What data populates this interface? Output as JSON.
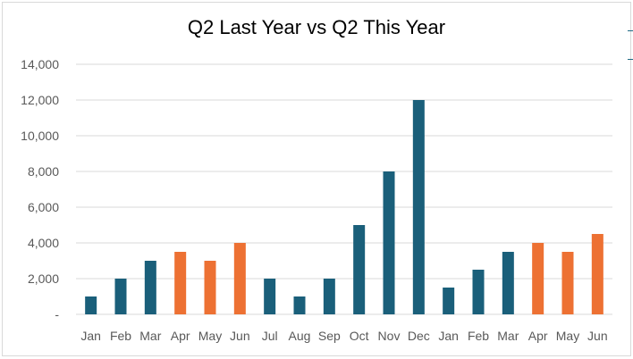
{
  "chart_data": {
    "type": "bar",
    "title": "Q2 Last Year vs Q2 This Year",
    "categories": [
      "Jan",
      "Feb",
      "Mar",
      "Apr",
      "May",
      "Jun",
      "Jul",
      "Aug",
      "Sep",
      "Oct",
      "Nov",
      "Dec",
      "Jan",
      "Feb",
      "Mar",
      "Apr",
      "May",
      "Jun"
    ],
    "values": [
      1000,
      2000,
      3000,
      3500,
      3000,
      4000,
      2000,
      1000,
      2000,
      5000,
      8000,
      12000,
      1500,
      2500,
      3500,
      4000,
      3500,
      4500
    ],
    "highlight": [
      false,
      false,
      false,
      true,
      true,
      true,
      false,
      false,
      false,
      false,
      false,
      false,
      false,
      false,
      false,
      true,
      true,
      true
    ],
    "colors": {
      "base": "#1a5f7a",
      "highlight": "#ed7133",
      "grid": "#d9d9d9",
      "axis_text": "#595959"
    },
    "ylim": [
      0,
      14000
    ],
    "yticks": [
      0,
      2000,
      4000,
      6000,
      8000,
      10000,
      12000,
      14000
    ],
    "ytick_labels": [
      "-",
      "2,000",
      "4,000",
      "6,000",
      "8,000",
      "10,000",
      "12,000",
      "14,000"
    ],
    "xlabel": "",
    "ylabel": "",
    "grid": true,
    "legend": "none"
  }
}
